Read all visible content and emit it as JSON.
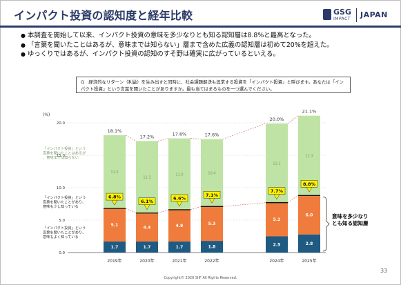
{
  "title": "インパクト投資の認知度と経年比較",
  "logo": {
    "gsg": "GSG",
    "impact": "IMPACT",
    "japan": "JAPAN"
  },
  "bullets": [
    "本調査を開始して以来、インパクト投資の意味を多少なりとも知る認知層は8.8%と最高となった。",
    "「言葉を聞いたことはあるが、意味までは知らない」層まで含めた広義の認知層は初めて20%を超えた。",
    "ゆっくりではあるが、インパクト投資の認知のすそ野は確実に広がっているといえる。"
  ],
  "question": "Q　経済的なリターン（利益）を生み出すと同時に、社会課題解決も追求する投資を「インパクト投資」と呼びます。あなたは「インパクト投資」という言葉を聞いたことがありますか。最も当てはまるものを一つ選んでください。",
  "footer": "Copyright© 2026 SIIF All Rights Reserved.",
  "page_number": "33",
  "chart_data": {
    "type": "bar",
    "stacked": true,
    "y_unit": "(%)",
    "ylim": [
      0,
      20
    ],
    "yticks": [
      "0.0",
      "5.0",
      "10.0",
      "15.0",
      "20.0"
    ],
    "grid": true,
    "categories": [
      "2019年",
      "2020年",
      "2021年",
      "2022年",
      "2024年",
      "2025年"
    ],
    "series": [
      {
        "name": "「インパクト投資」という言葉を聞いたことがあり、意味もよく知っている",
        "color": "#1f5a82",
        "values": [
          1.7,
          1.7,
          1.7,
          1.8,
          2.5,
          2.8
        ]
      },
      {
        "name": "「インパクト投資」という言葉を聞いたことがあり、意味も少し知っている",
        "color": "#ef7c3c",
        "values": [
          5.1,
          4.4,
          4.9,
          5.3,
          5.2,
          6.0
        ]
      },
      {
        "name": "「インパクト投資」という言葉を聞いたことはあるが、意味までは知らない",
        "color": "#bfe3a5",
        "values": [
          11.3,
          11.1,
          11.0,
          10.4,
          12.2,
          12.3
        ]
      }
    ],
    "value_labels": [
      [
        "1.7",
        "5.1",
        "11.3"
      ],
      [
        "1.7",
        "4.4",
        "11.1"
      ],
      [
        "1.7",
        "4.9",
        "11.0"
      ],
      [
        "1.8",
        "5.3",
        "10.4"
      ],
      [
        "2.5",
        "5.2",
        "12.2"
      ],
      [
        "2.8",
        "6.0",
        "12.3"
      ]
    ],
    "totals": [
      "18.1%",
      "17.2%",
      "17.6%",
      "17.6%",
      "20.0%",
      "21.1%"
    ],
    "awareness": [
      "6.8%",
      "6.1%",
      "6.6%",
      "7.1%",
      "7.7%",
      "8.8%"
    ],
    "annotation": "意味を多少なりとも知る認知層"
  }
}
